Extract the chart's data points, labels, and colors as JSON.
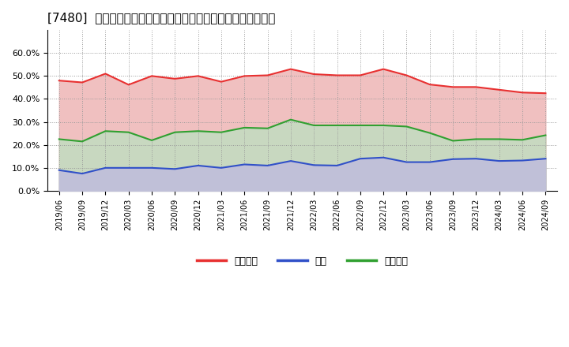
{
  "title": "[7480]  売上債権、在庫、買入債務の総資産に対する比率の推移",
  "x_labels": [
    "2019/06",
    "2019/09",
    "2019/12",
    "2020/03",
    "2020/06",
    "2020/09",
    "2020/12",
    "2021/03",
    "2021/06",
    "2021/09",
    "2021/12",
    "2022/03",
    "2022/06",
    "2022/09",
    "2022/12",
    "2023/03",
    "2023/06",
    "2023/09",
    "2023/12",
    "2024/03",
    "2024/06",
    "2024/09"
  ],
  "urikake": [
    0.48,
    0.472,
    0.51,
    0.462,
    0.5,
    0.488,
    0.5,
    0.475,
    0.5,
    0.503,
    0.53,
    0.508,
    0.503,
    0.503,
    0.53,
    0.503,
    0.463,
    0.452,
    0.452,
    0.44,
    0.428,
    0.425
  ],
  "zaiko": [
    0.09,
    0.075,
    0.1,
    0.1,
    0.1,
    0.095,
    0.11,
    0.1,
    0.115,
    0.11,
    0.13,
    0.112,
    0.11,
    0.14,
    0.145,
    0.125,
    0.125,
    0.138,
    0.14,
    0.13,
    0.132,
    0.14
  ],
  "kaiire": [
    0.225,
    0.215,
    0.26,
    0.255,
    0.22,
    0.255,
    0.26,
    0.255,
    0.275,
    0.272,
    0.31,
    0.285,
    0.285,
    0.285,
    0.285,
    0.28,
    0.252,
    0.218,
    0.225,
    0.225,
    0.222,
    0.242
  ],
  "urikake_color": "#e83030",
  "zaiko_color": "#3050c8",
  "kaiire_color": "#30a030",
  "fill_urikake": "#f0c0c0",
  "fill_kaiire": "#c8d8c0",
  "fill_zaiko": "#c0c0d8",
  "ylim": [
    0.0,
    0.7
  ],
  "yticks": [
    0.0,
    0.1,
    0.2,
    0.3,
    0.4,
    0.5,
    0.6
  ],
  "legend_labels": [
    "売上債権",
    "在庫",
    "買入債務"
  ],
  "bg_color": "#ffffff",
  "grid_color": "#999999",
  "title_fontsize": 11,
  "legend_fontsize": 9
}
